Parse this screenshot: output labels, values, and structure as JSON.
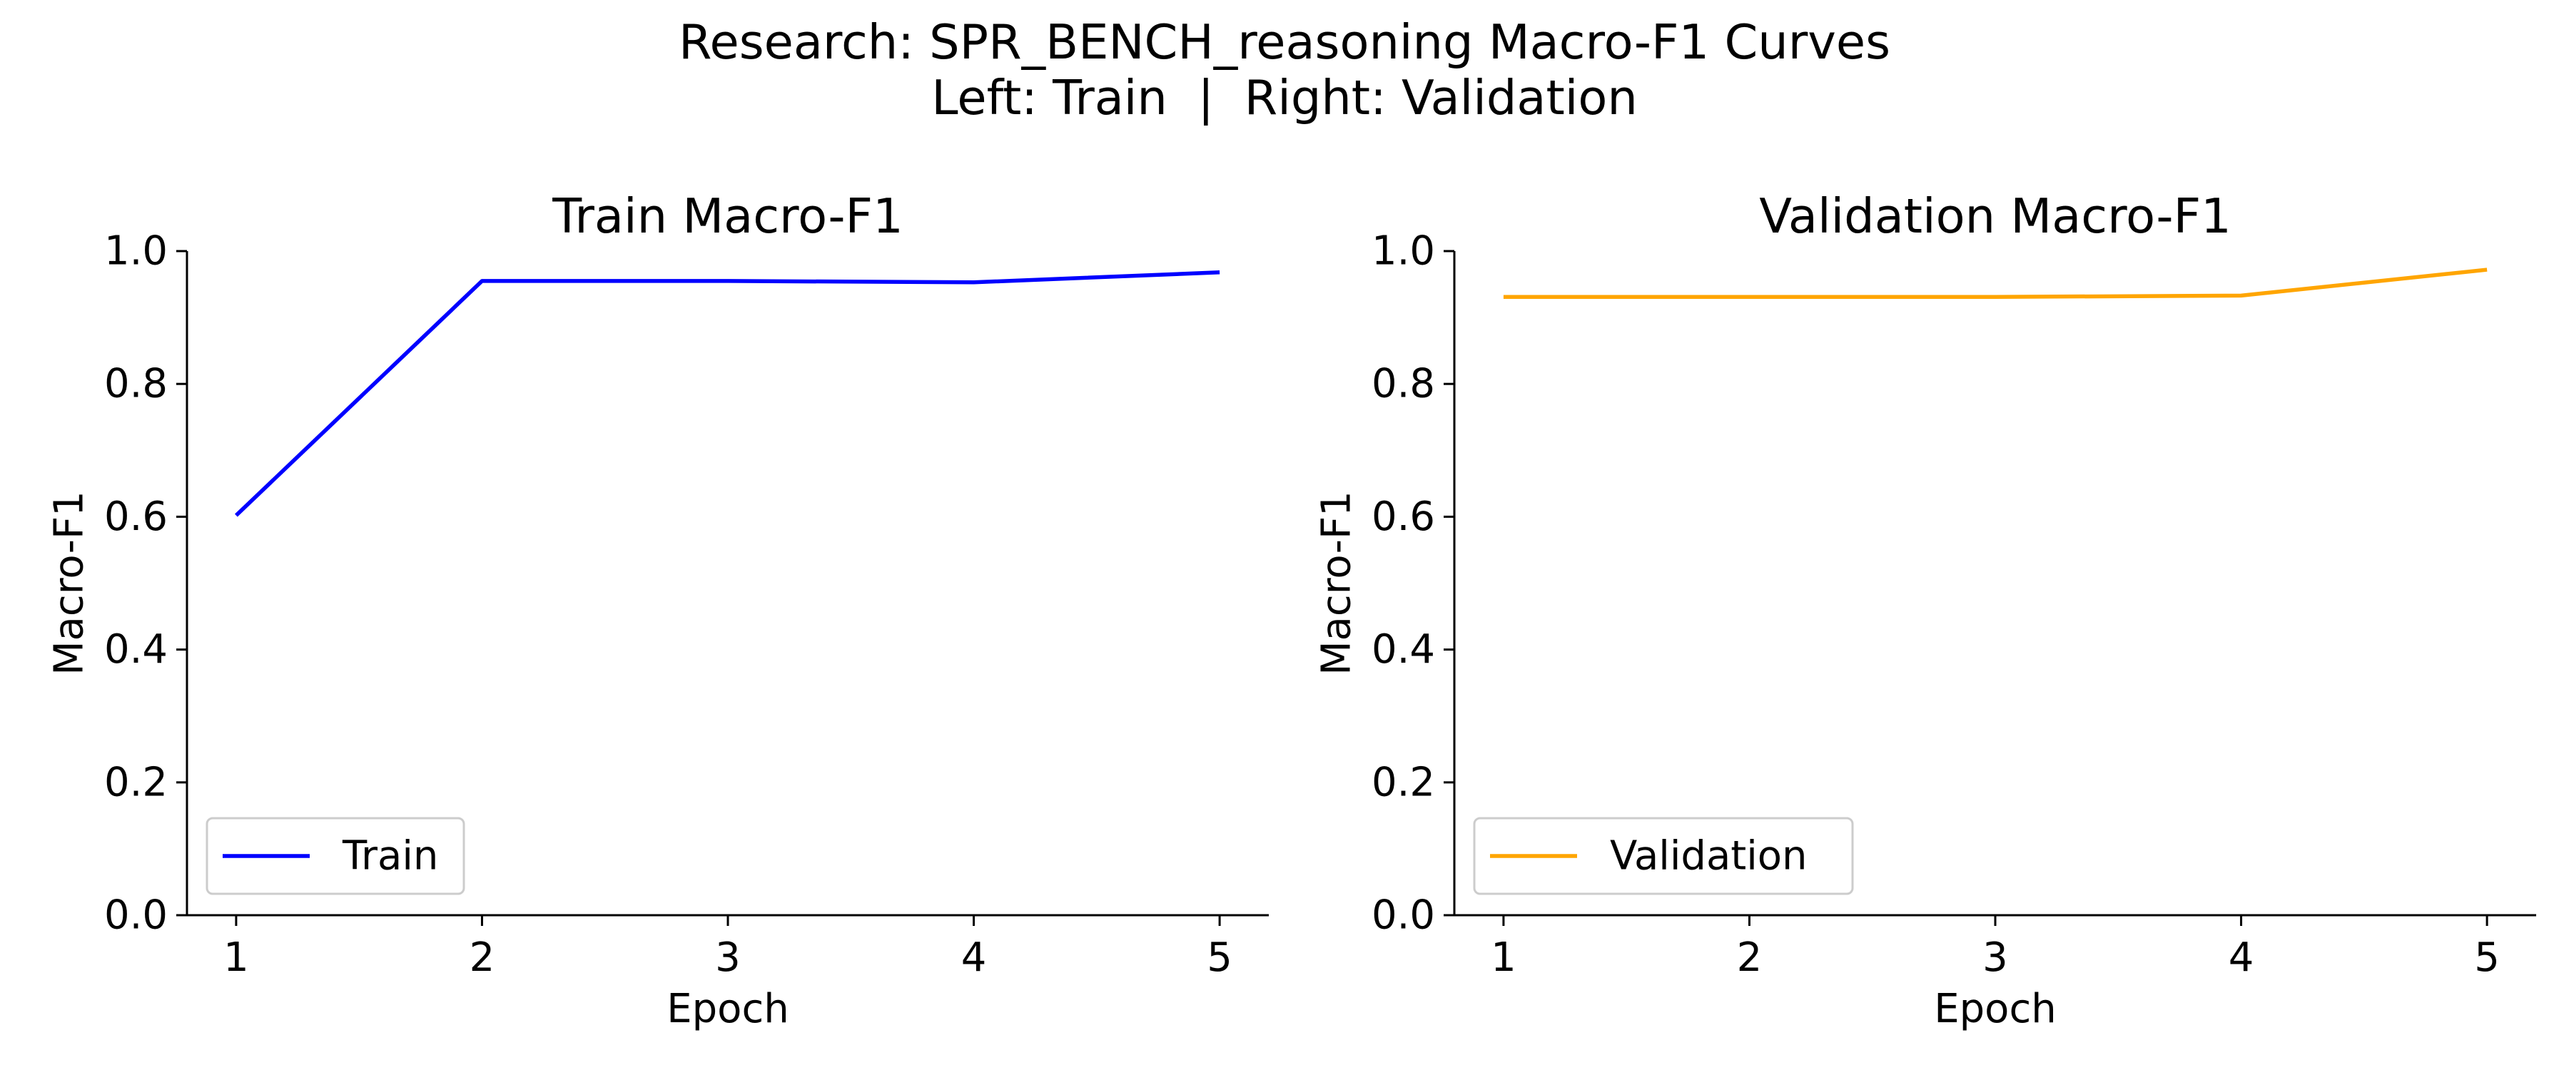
{
  "figure": {
    "suptitle_line1": "Research: SPR_BENCH_reasoning Macro-F1 Curves",
    "suptitle_line2": "Left: Train  |  Right: Validation"
  },
  "chart_data": [
    {
      "type": "line",
      "title": "Train Macro-F1",
      "xlabel": "Epoch",
      "ylabel": "Macro-F1",
      "x": [
        1,
        2,
        3,
        4,
        5
      ],
      "xlim": [
        0.8,
        5.2
      ],
      "ylim": [
        0.0,
        1.0
      ],
      "xticks": [
        "1",
        "2",
        "3",
        "4",
        "5"
      ],
      "yticks": [
        "0.0",
        "0.2",
        "0.4",
        "0.6",
        "0.8",
        "1.0"
      ],
      "grid": false,
      "legend_position": "lower-left",
      "series": [
        {
          "name": "Train",
          "color": "#0000ff",
          "values": [
            0.602,
            0.955,
            0.955,
            0.953,
            0.968
          ]
        }
      ]
    },
    {
      "type": "line",
      "title": "Validation Macro-F1",
      "xlabel": "Epoch",
      "ylabel": "Macro-F1",
      "x": [
        1,
        2,
        3,
        4,
        5
      ],
      "xlim": [
        0.8,
        5.2
      ],
      "ylim": [
        0.0,
        1.0
      ],
      "xticks": [
        "1",
        "2",
        "3",
        "4",
        "5"
      ],
      "yticks": [
        "0.0",
        "0.2",
        "0.4",
        "0.6",
        "0.8",
        "1.0"
      ],
      "grid": false,
      "legend_position": "lower-left",
      "series": [
        {
          "name": "Validation",
          "color": "#ffa500",
          "values": [
            0.931,
            0.931,
            0.931,
            0.933,
            0.972
          ]
        }
      ]
    }
  ]
}
